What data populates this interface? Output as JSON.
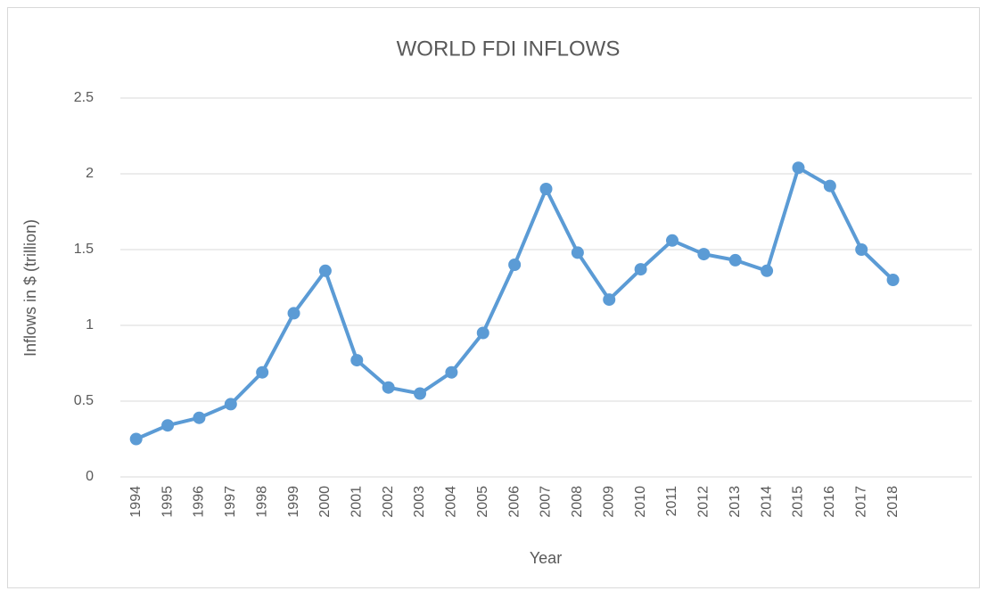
{
  "chart_data": {
    "type": "line",
    "title": "WORLD FDI INFLOWS",
    "x_label": "Year",
    "y_label": "Inflows in $ (trillion)",
    "categories": [
      "1994",
      "1995",
      "1996",
      "1997",
      "1998",
      "1999",
      "2000",
      "2001",
      "2002",
      "2003",
      "2004",
      "2005",
      "2006",
      "2007",
      "2008",
      "2009",
      "2010",
      "2011",
      "2012",
      "2013",
      "2014",
      "2015",
      "2016",
      "2017",
      "2018",
      null,
      null
    ],
    "series": [
      {
        "name": "World FDI inflows",
        "color": "#5b9bd5",
        "values": [
          0.25,
          0.34,
          0.39,
          0.48,
          0.69,
          1.08,
          1.36,
          0.77,
          0.59,
          0.55,
          0.69,
          0.95,
          1.4,
          1.9,
          1.48,
          1.17,
          1.37,
          1.56,
          1.47,
          1.43,
          1.36,
          2.04,
          1.92,
          1.5,
          1.3,
          null,
          null
        ]
      }
    ],
    "ylim": [
      0,
      2.5
    ],
    "yticks": [
      0,
      0.5,
      1,
      1.5,
      2,
      2.5
    ],
    "grid": true,
    "legend": false
  }
}
